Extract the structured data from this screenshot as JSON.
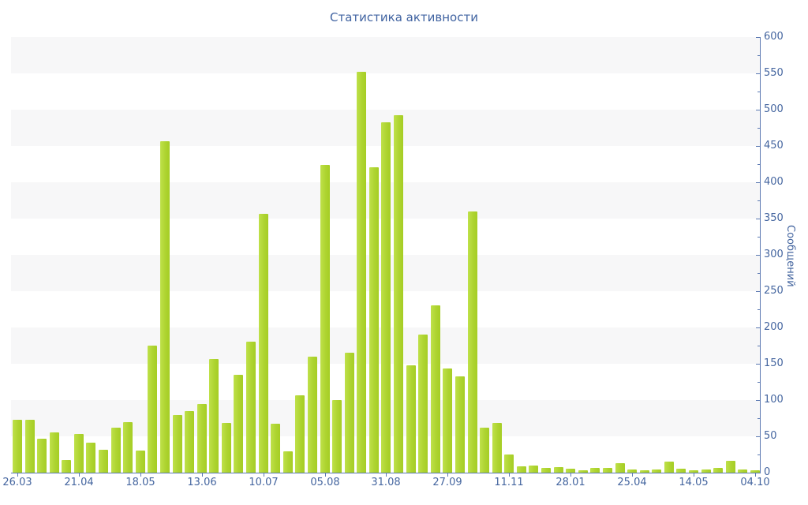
{
  "chart_data": {
    "type": "bar",
    "title": "Статистика активности",
    "ylabel": "Сообщений",
    "xlabel": "",
    "ylim": [
      0,
      600
    ],
    "y_major_step": 50,
    "y_minor_step": 25,
    "grid": "alternating-horizontal-bands",
    "legend": "none",
    "x_labels": [
      "26.03",
      "21.04",
      "18.05",
      "13.06",
      "10.07",
      "05.08",
      "31.08",
      "27.09",
      "11.11",
      "28.01",
      "25.04",
      "14.05",
      "04.10"
    ],
    "x_label_every_n_bars": 5,
    "values": [
      73,
      73,
      47,
      55,
      17,
      53,
      41,
      31,
      62,
      70,
      30,
      175,
      457,
      79,
      85,
      95,
      157,
      68,
      135,
      180,
      357,
      67,
      29,
      107,
      160,
      424,
      100,
      165,
      552,
      421,
      483,
      492,
      148,
      190,
      230,
      143,
      133,
      360,
      62,
      68,
      25,
      9,
      10,
      7,
      8,
      5,
      3,
      6,
      7,
      13,
      4,
      3,
      4,
      15,
      5,
      3,
      4,
      6,
      16,
      4,
      3
    ],
    "colors": {
      "bar": "#aed431",
      "bar_edge_light": "#bfe14a",
      "band": "#f7f7f8",
      "axis_line": "#5b79b2",
      "text": "#44659f",
      "title_text": "#4063a1",
      "background": "#ffffff"
    }
  }
}
